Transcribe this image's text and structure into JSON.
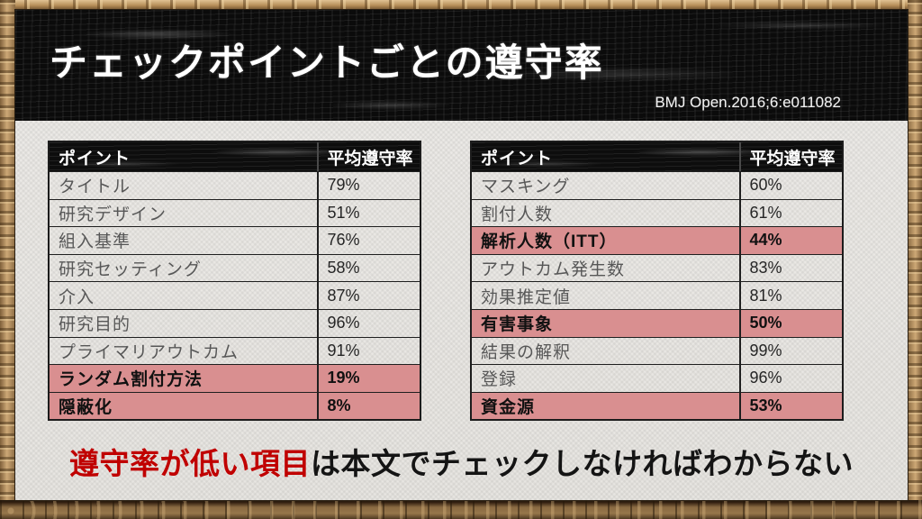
{
  "header": {
    "title": "チェックポイントごとの遵守率",
    "citation": "BMJ Open.2016;6:e011082"
  },
  "table_columns": [
    "ポイント",
    "平均遵守率"
  ],
  "left_table": {
    "rows": [
      {
        "label": "タイトル",
        "value": "79%",
        "highlight": false
      },
      {
        "label": "研究デザイン",
        "value": "51%",
        "highlight": false
      },
      {
        "label": "組入基準",
        "value": "76%",
        "highlight": false
      },
      {
        "label": "研究セッティング",
        "value": "58%",
        "highlight": false
      },
      {
        "label": "介入",
        "value": "87%",
        "highlight": false
      },
      {
        "label": "研究目的",
        "value": "96%",
        "highlight": false
      },
      {
        "label": "プライマリアウトカム",
        "value": "91%",
        "highlight": false
      },
      {
        "label": "ランダム割付方法",
        "value": "19%",
        "highlight": true
      },
      {
        "label": "隠蔽化",
        "value": "8%",
        "highlight": true
      }
    ]
  },
  "right_table": {
    "rows": [
      {
        "label": "マスキング",
        "value": "60%",
        "highlight": false
      },
      {
        "label": "割付人数",
        "value": "61%",
        "highlight": false
      },
      {
        "label": "解析人数（ITT）",
        "value": "44%",
        "highlight": true
      },
      {
        "label": "アウトカム発生数",
        "value": "83%",
        "highlight": false
      },
      {
        "label": "効果推定値",
        "value": "81%",
        "highlight": false
      },
      {
        "label": "有害事象",
        "value": "50%",
        "highlight": true
      },
      {
        "label": "結果の解釈",
        "value": "99%",
        "highlight": false
      },
      {
        "label": "登録",
        "value": "96%",
        "highlight": false
      },
      {
        "label": "資金源",
        "value": "53%",
        "highlight": true
      }
    ]
  },
  "footer": {
    "highlight_text": "遵守率が低い項目",
    "rest_text": "は本文でチェックしなければわからない"
  },
  "colors": {
    "highlight_row": "#d98f90",
    "accent_red": "#c00000",
    "chalkboard": "#0b0b0b",
    "paper": "#eae8e5",
    "frame_gold": "#c9a672"
  }
}
